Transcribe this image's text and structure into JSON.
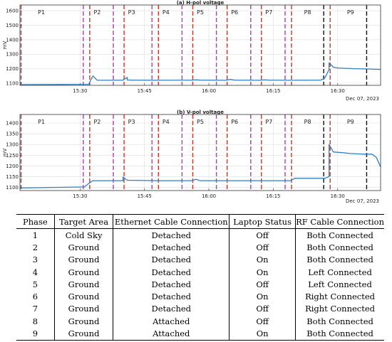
{
  "chart_data": [
    {
      "type": "line",
      "title": "(a) H-pol voltage",
      "ylabel": "mV",
      "ylim": [
        1085,
        1640
      ],
      "yticks": [
        "1100",
        "1200",
        "1300",
        "1400",
        "1500",
        "1600"
      ],
      "xlim": [
        "15:16",
        "16:40"
      ],
      "xticks": [
        "15:30",
        "15:45",
        "16:00",
        "16:15",
        "16:30"
      ],
      "date_label": "Dec 07, 2023",
      "phase_labels": [
        "P1",
        "P2",
        "P3",
        "P4",
        "P5",
        "P6",
        "P7",
        "P8",
        "P9"
      ],
      "phase_label_times": [
        "15:21",
        "15:34",
        "15:42",
        "15:50",
        "15:58",
        "16:06",
        "16:14",
        "16:23",
        "16:33"
      ],
      "phase_start_times": [
        "15:16",
        "15:32",
        "15:40",
        "15:48",
        "15:56",
        "16:04",
        "16:12",
        "16:19",
        "16:28"
      ],
      "phase_end_times": [
        "15:31",
        "15:38",
        "15:47",
        "15:54",
        "16:02",
        "16:10",
        "16:18",
        "16:27",
        "16:37"
      ],
      "series": [
        {
          "color": "#2f7fc1",
          "x": [
            "15:16",
            "15:25",
            "15:32",
            "15:33",
            "15:34",
            "15:37",
            "15:40",
            "15:41",
            "15:41",
            "15:42",
            "15:48",
            "15:56",
            "15:57",
            "15:58",
            "16:04",
            "16:05",
            "16:06",
            "16:12",
            "16:13",
            "16:14",
            "16:19",
            "16:26",
            "16:27",
            "16:28",
            "16:28",
            "16:29",
            "16:30",
            "16:34",
            "16:37",
            "16:40"
          ],
          "y": [
            1090,
            1091,
            1092,
            1150,
            1120,
            1120,
            1121,
            1140,
            1122,
            1121,
            1120,
            1121,
            1123,
            1121,
            1120,
            1126,
            1121,
            1120,
            1123,
            1121,
            1120,
            1121,
            1135,
            1195,
            1240,
            1210,
            1205,
            1200,
            1198,
            1195
          ]
        }
      ]
    },
    {
      "type": "line",
      "title": "(b) V-pol voltage",
      "ylabel": "mV",
      "ylim": [
        1085,
        1440
      ],
      "yticks": [
        "1100",
        "1150",
        "1200",
        "1250",
        "1300",
        "1350",
        "1400"
      ],
      "xlim": [
        "15:16",
        "16:40"
      ],
      "xticks": [
        "15:30",
        "15:45",
        "16:00",
        "16:15",
        "16:30"
      ],
      "date_label": "Dec 07, 2023",
      "phase_labels": [
        "P1",
        "P2",
        "P3",
        "P4",
        "P5",
        "P6",
        "P7",
        "P8",
        "P9"
      ],
      "phase_label_times": [
        "15:21",
        "15:34",
        "15:42",
        "15:50",
        "15:58",
        "16:06",
        "16:14",
        "16:23",
        "16:33"
      ],
      "phase_start_times": [
        "15:16",
        "15:32",
        "15:40",
        "15:48",
        "15:56",
        "16:04",
        "16:12",
        "16:19",
        "16:28"
      ],
      "phase_end_times": [
        "15:31",
        "15:38",
        "15:47",
        "15:54",
        "16:02",
        "16:10",
        "16:18",
        "16:27",
        "16:37"
      ],
      "series": [
        {
          "color": "#2f7fc1",
          "x": [
            "15:16",
            "15:25",
            "15:31",
            "15:32",
            "15:33",
            "15:40",
            "15:40",
            "15:41",
            "15:48",
            "15:56",
            "15:57",
            "15:58",
            "16:04",
            "16:12",
            "16:19",
            "16:20",
            "16:27",
            "16:28",
            "16:28",
            "16:29",
            "16:31",
            "16:33",
            "16:36",
            "16:38",
            "16:39",
            "16:40"
          ],
          "y": [
            1097,
            1100,
            1102,
            1118,
            1131,
            1131,
            1148,
            1133,
            1131,
            1131,
            1137,
            1131,
            1131,
            1131,
            1131,
            1142,
            1142,
            1150,
            1300,
            1265,
            1262,
            1258,
            1255,
            1255,
            1240,
            1195
          ]
        }
      ]
    }
  ],
  "table": {
    "headers": [
      "Phase",
      "Target Area",
      "Ethernet Cable Connection",
      "Laptop Status",
      "RF Cable Connection"
    ],
    "rows": [
      [
        "1",
        "Cold Sky",
        "Detached",
        "Off",
        "Both Connected"
      ],
      [
        "2",
        "Ground",
        "Detached",
        "Off",
        "Both Connected"
      ],
      [
        "3",
        "Ground",
        "Detached",
        "On",
        "Both Connected"
      ],
      [
        "4",
        "Ground",
        "Detached",
        "On",
        "Left Connected"
      ],
      [
        "5",
        "Ground",
        "Detached",
        "Off",
        "Left Connected"
      ],
      [
        "6",
        "Ground",
        "Detached",
        "On",
        "Right Connected"
      ],
      [
        "7",
        "Ground",
        "Detached",
        "Off",
        "Right Connected"
      ],
      [
        "8",
        "Ground",
        "Attached",
        "Off",
        "Both Connected"
      ],
      [
        "9",
        "Ground",
        "Attached",
        "On",
        "Both Connected"
      ]
    ]
  },
  "colors": {
    "series": "#2f7fc1",
    "phase_start": "#c0392b",
    "phase_end": "#b03ab8",
    "phase_end_late": "#111111",
    "grid": "#e2e2e2"
  }
}
